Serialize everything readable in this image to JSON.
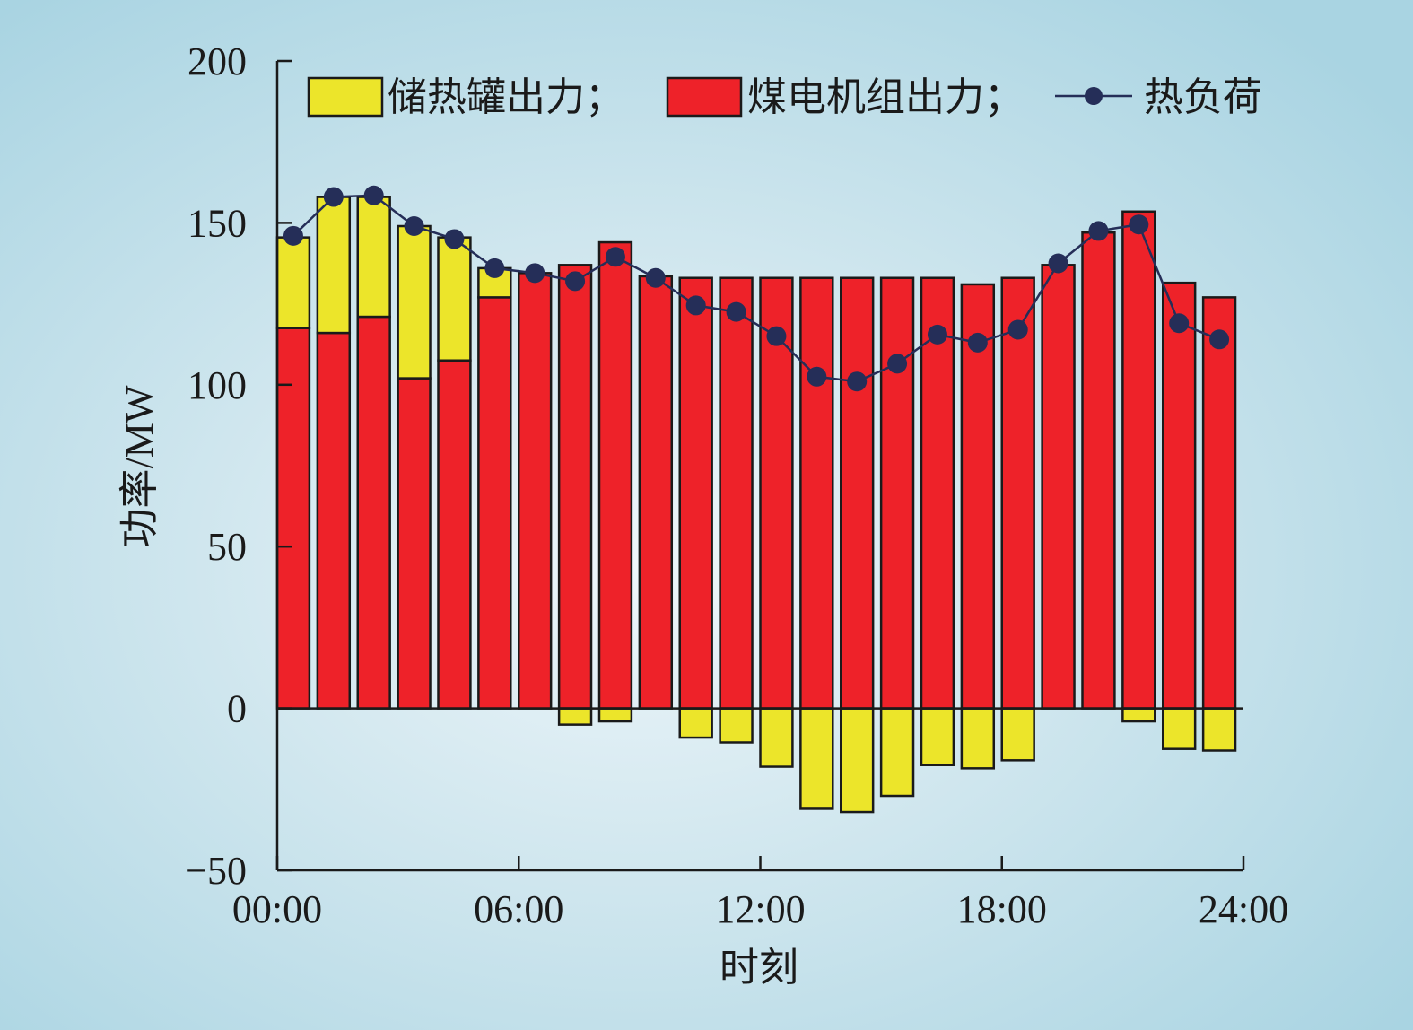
{
  "chart_data": {
    "type": "bar",
    "ylabel": "功率/MW",
    "xlabel": "时刻",
    "ylim": [
      -50,
      200
    ],
    "yticks": [
      -50,
      0,
      50,
      100,
      150,
      200
    ],
    "ytick_labels": [
      "−50",
      "0",
      "50",
      "100",
      "150",
      "200"
    ],
    "xlim": [
      0,
      24
    ],
    "xticks": [
      0,
      6,
      12,
      18,
      24
    ],
    "xtick_labels": [
      "00:00",
      "06:00",
      "12:00",
      "18:00",
      "24:00"
    ],
    "hours": [
      1,
      2,
      3,
      4,
      5,
      6,
      7,
      8,
      9,
      10,
      11,
      12,
      13,
      14,
      15,
      16,
      17,
      18,
      19,
      20,
      21,
      22,
      23,
      24
    ],
    "legend_position": "top",
    "series": [
      {
        "name": "储热罐出力；",
        "kind": "bar",
        "color": "#ece52a",
        "values": [
          28,
          42,
          37,
          47,
          38,
          9,
          0,
          -5,
          -4,
          0,
          -9,
          -10.5,
          -18,
          -31,
          -32,
          -27,
          -17.5,
          -18.5,
          -16,
          0,
          0,
          -4,
          -12.5,
          -13
        ]
      },
      {
        "name": "煤电机组出力；",
        "kind": "bar",
        "color": "#ee2229",
        "values": [
          117.5,
          116,
          121,
          102,
          107.5,
          127,
          134.5,
          137,
          144,
          133.5,
          133,
          133,
          133,
          133,
          133,
          133,
          133,
          131,
          133,
          137,
          147,
          153.5,
          131.5,
          127
        ]
      },
      {
        "name": "热负荷",
        "kind": "line",
        "color": "#252e58",
        "values": [
          146,
          158,
          158.5,
          149,
          145,
          136,
          134.5,
          132,
          139.5,
          133,
          124.5,
          122.5,
          115,
          102.5,
          101,
          106.5,
          115.5,
          113,
          117,
          137.5,
          147.5,
          149.5,
          119,
          114
        ]
      }
    ]
  },
  "colors": {
    "axis": "#1a1a1a",
    "bar_stroke": "#1a1a1a"
  }
}
